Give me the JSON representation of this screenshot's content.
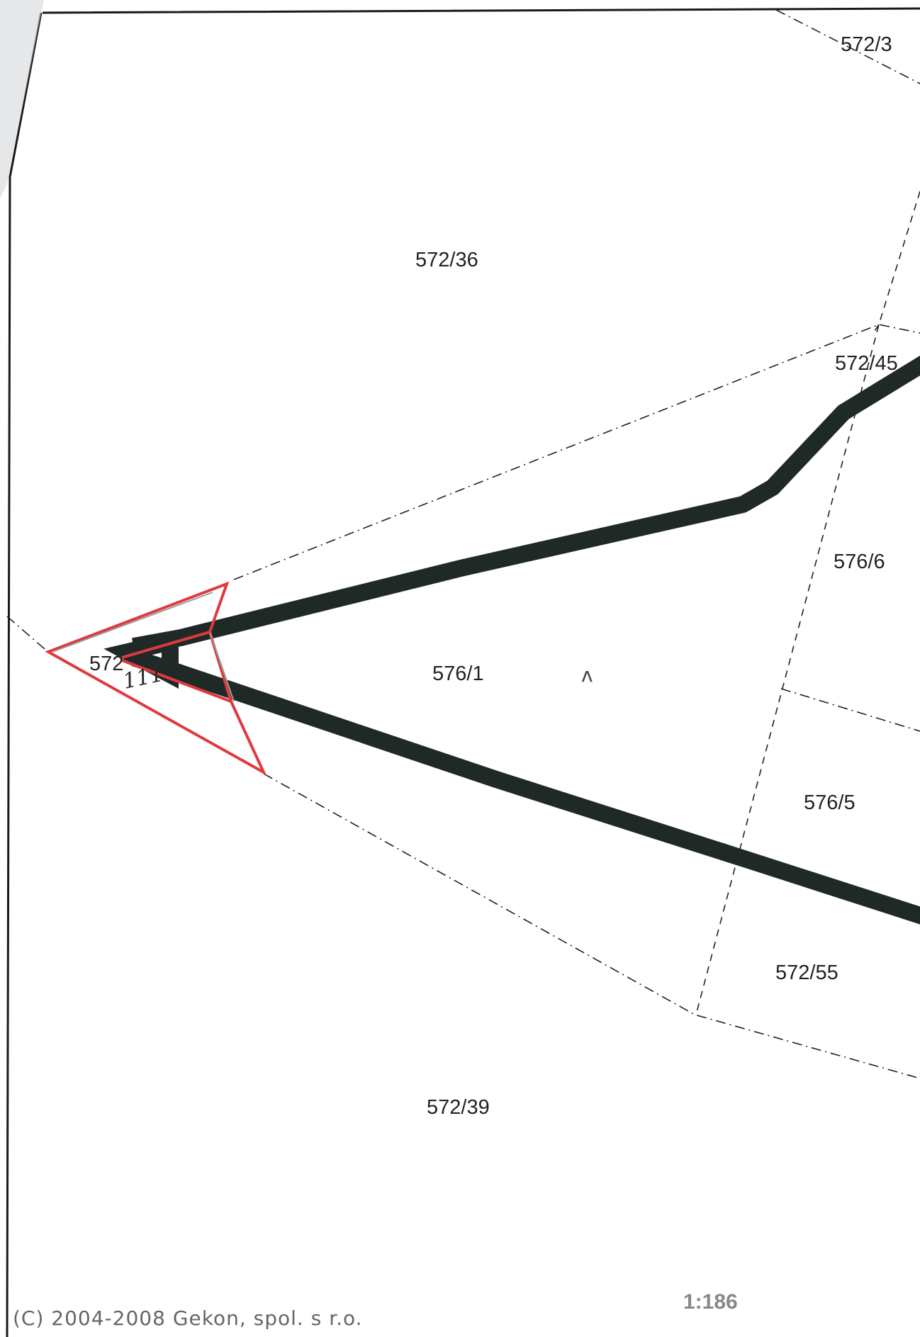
{
  "map": {
    "parcels": [
      {
        "id": "572-3",
        "label": "572/3"
      },
      {
        "id": "572-36",
        "label": "572/36"
      },
      {
        "id": "572-45",
        "label": "572/45"
      },
      {
        "id": "576-6",
        "label": "576/6"
      },
      {
        "id": "576-1",
        "label": "576/1"
      },
      {
        "id": "572-partial",
        "label": "572"
      },
      {
        "id": "576-5",
        "label": "576/5"
      },
      {
        "id": "572-55",
        "label": "572/55"
      },
      {
        "id": "572-39",
        "label": "572/39"
      }
    ],
    "handwritten_mark": "111",
    "north_mark": "ʌ",
    "copyright": "(C) 2004-2008 Gekon, spol. s r.o.",
    "scale": "1:186",
    "colors": {
      "road": "#1f2a26",
      "marker": "#e0393e",
      "boundary": "#222222"
    }
  }
}
